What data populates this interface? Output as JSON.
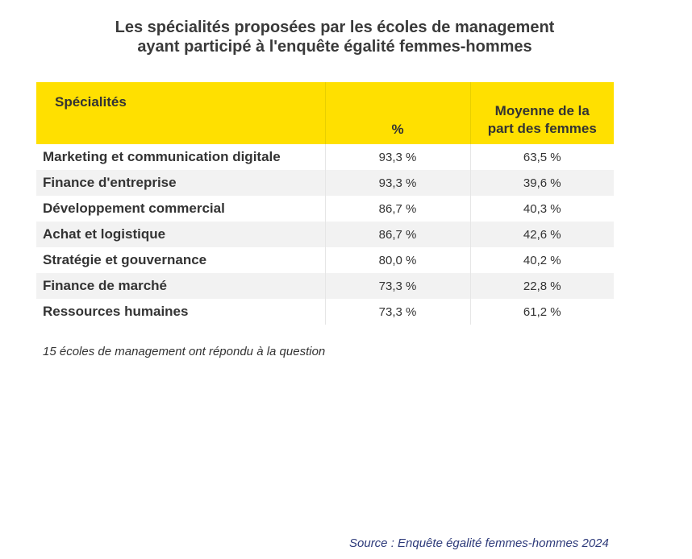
{
  "title_line1": "Les spécialités proposées par les écoles de management",
  "title_line2": "ayant participé à l'enquête égalité femmes-hommes",
  "chart_data": {
    "type": "table",
    "columns": [
      "Spécialités",
      "%",
      "Moyenne de la part des femmes"
    ],
    "header_color": "#ffe000",
    "rows": [
      [
        "Marketing et communication digitale",
        "93,3 %",
        "63,5 %"
      ],
      [
        "Finance d'entreprise",
        "93,3 %",
        "39,6 %"
      ],
      [
        "Développement commercial",
        "86,7 %",
        "40,3 %"
      ],
      [
        "Achat et logistique",
        "86,7 %",
        "42,6 %"
      ],
      [
        "Stratégie et gouvernance",
        "80,0 %",
        "40,2 %"
      ],
      [
        "Finance de marché",
        "73,3 %",
        "22,8 %"
      ],
      [
        "Ressources humaines",
        "73,3 %",
        "61,2 %"
      ]
    ]
  },
  "header": {
    "col1": "Spécialités",
    "col2": "%",
    "col3_line1": "Moyenne de la",
    "col3_line2": "part des femmes"
  },
  "note": "15 écoles de management ont répondu à la question",
  "source": "Source : Enquête égalité femmes-hommes 2024"
}
